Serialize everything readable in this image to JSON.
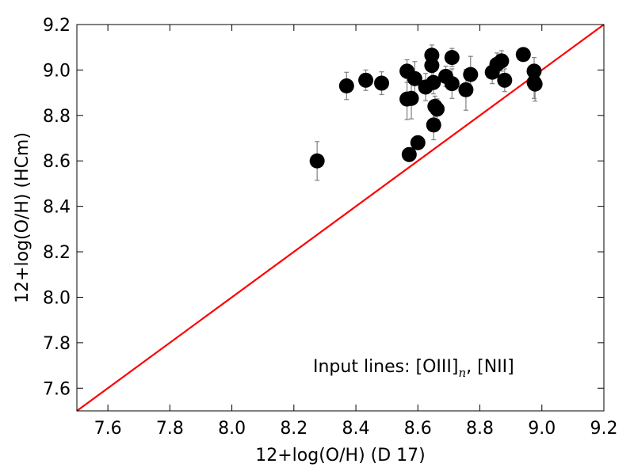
{
  "chart_data": {
    "type": "scatter",
    "title": "",
    "xlabel": "12+log(O/H) (D 17)",
    "ylabel": "12+log(O/H) (HCm)",
    "xlim": [
      7.5,
      9.2
    ],
    "ylim": [
      7.5,
      9.2
    ],
    "xticks": [
      "7.6",
      "7.8",
      "8.0",
      "8.2",
      "8.4",
      "8.6",
      "8.8",
      "9.0",
      "9.2"
    ],
    "yticks": [
      "7.6",
      "7.8",
      "8.0",
      "8.2",
      "8.4",
      "8.6",
      "8.8",
      "9.0",
      "9.2"
    ],
    "grid": false,
    "annotation": {
      "prefix": "Input lines:  [OIII]",
      "subscript": "n",
      "suffix": ", [NII]"
    },
    "marker_color": "#000000",
    "errorbar_color": "#808080",
    "reference_line": {
      "x": [
        7.5,
        9.2
      ],
      "y": [
        7.5,
        9.2
      ],
      "color": "#ff0000"
    },
    "points": [
      {
        "x": 8.275,
        "y": 8.6,
        "err": 0.085
      },
      {
        "x": 8.37,
        "y": 8.93,
        "err": 0.06
      },
      {
        "x": 8.432,
        "y": 8.955,
        "err": 0.045
      },
      {
        "x": 8.483,
        "y": 8.942,
        "err": 0.05
      },
      {
        "x": 8.565,
        "y": 8.995,
        "err": 0.05
      },
      {
        "x": 8.565,
        "y": 8.872,
        "err": 0.09
      },
      {
        "x": 8.579,
        "y": 8.875,
        "err": 0.09
      },
      {
        "x": 8.59,
        "y": 8.962,
        "err": 0.075
      },
      {
        "x": 8.572,
        "y": 8.628,
        "err": 0.03
      },
      {
        "x": 8.6,
        "y": 8.68,
        "err": 0.03
      },
      {
        "x": 8.625,
        "y": 8.925,
        "err": 0.06
      },
      {
        "x": 8.645,
        "y": 9.065,
        "err": 0.045
      },
      {
        "x": 8.645,
        "y": 9.02,
        "err": 0.05
      },
      {
        "x": 8.65,
        "y": 8.945,
        "err": 0.05
      },
      {
        "x": 8.651,
        "y": 8.758,
        "err": 0.065
      },
      {
        "x": 8.655,
        "y": 8.84,
        "err": 0.045
      },
      {
        "x": 8.662,
        "y": 8.828,
        "err": 0.045
      },
      {
        "x": 8.69,
        "y": 8.972,
        "err": 0.045
      },
      {
        "x": 8.71,
        "y": 9.055,
        "err": 0.04
      },
      {
        "x": 8.71,
        "y": 8.94,
        "err": 0.065
      },
      {
        "x": 8.755,
        "y": 8.913,
        "err": 0.09
      },
      {
        "x": 8.77,
        "y": 8.98,
        "err": 0.08
      },
      {
        "x": 8.84,
        "y": 8.99,
        "err": 0.05
      },
      {
        "x": 8.855,
        "y": 9.025,
        "err": 0.05
      },
      {
        "x": 8.87,
        "y": 9.04,
        "err": 0.045
      },
      {
        "x": 8.88,
        "y": 8.955,
        "err": 0.05
      },
      {
        "x": 8.94,
        "y": 9.068,
        "err": 0.03
      },
      {
        "x": 8.975,
        "y": 8.995,
        "err": 0.06
      },
      {
        "x": 8.975,
        "y": 8.945,
        "err": 0.07
      },
      {
        "x": 8.978,
        "y": 8.938,
        "err": 0.075
      }
    ]
  }
}
